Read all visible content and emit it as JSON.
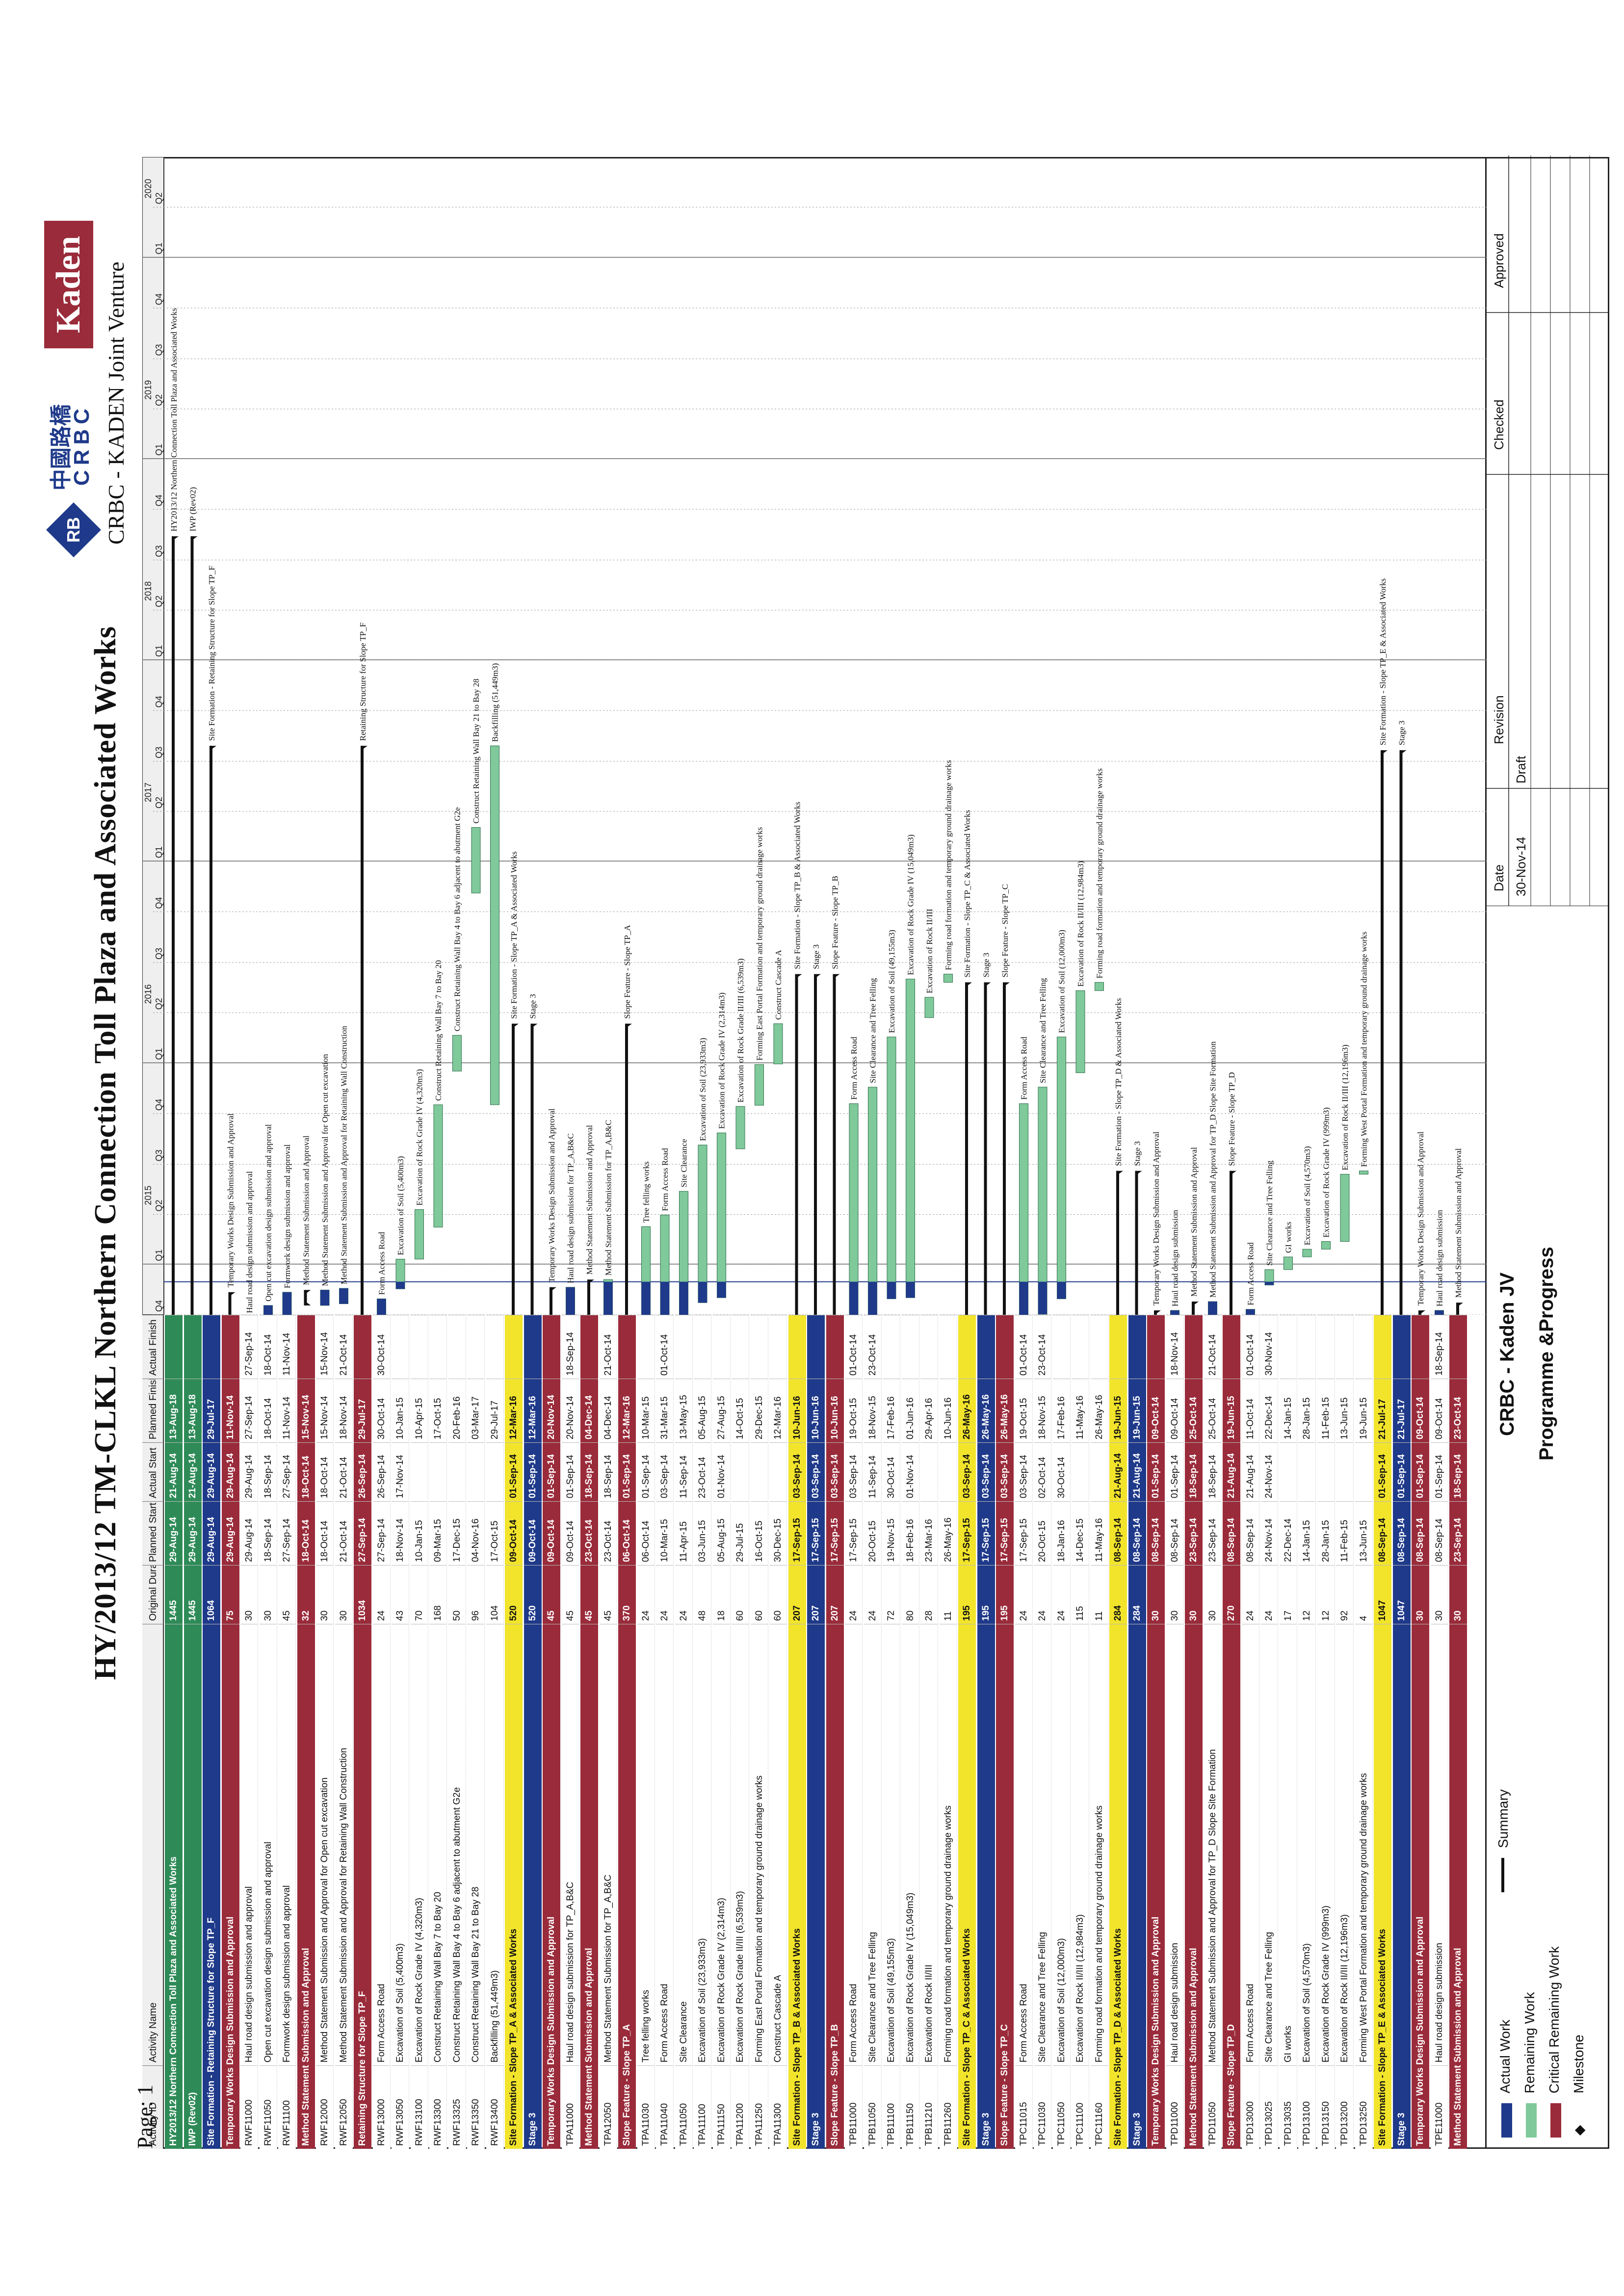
{
  "title": "HY/2013/12 TM-CLKL Northern Connection Toll Plaza and Associated Works",
  "page_label": "Page: 1",
  "columns": [
    "Activity ID",
    "Activity Name",
    "Original Duration",
    "Planned Start",
    "Actual Start",
    "Planned Finish",
    "Actual Finish"
  ],
  "rows": [
    {
      "k": "wbs0",
      "id": "HY2013/12 Northern Connection Toll Plaza and Associated Works",
      "name": "",
      "dur": "1445",
      "ps": "29-Aug-14",
      "as": "21-Aug-14",
      "pf": "13-Aug-18",
      "af": ""
    },
    {
      "k": "wbs0",
      "id": "IWP (Rev02)",
      "name": "",
      "dur": "1445",
      "ps": "29-Aug-14",
      "as": "21-Aug-14",
      "pf": "13-Aug-18",
      "af": ""
    },
    {
      "k": "wbs1",
      "id": "Site Formation - Retaining Structure for Slope TP_F",
      "name": "",
      "dur": "1064",
      "ps": "29-Aug-14",
      "as": "29-Aug-14",
      "pf": "29-Jul-17",
      "af": ""
    },
    {
      "k": "wbs3",
      "id": "Temporary Works Design Submission and Approval",
      "name": "",
      "dur": "75",
      "ps": "29-Aug-14",
      "as": "29-Aug-14",
      "pf": "11-Nov-14",
      "af": ""
    },
    {
      "k": "task",
      "id": "RWF11000",
      "name": "Haul road design submission and approval",
      "dur": "30",
      "ps": "29-Aug-14",
      "as": "29-Aug-14",
      "pf": "27-Sep-14",
      "af": "27-Sep-14"
    },
    {
      "k": "task",
      "id": "RWF11050",
      "name": "Open cut excavation design submission and approval",
      "dur": "30",
      "ps": "18-Sep-14",
      "as": "18-Sep-14",
      "pf": "18-Oct-14",
      "af": "18-Oct-14"
    },
    {
      "k": "task",
      "id": "RWF11100",
      "name": "Formwork design submission and approval",
      "dur": "45",
      "ps": "27-Sep-14",
      "as": "27-Sep-14",
      "pf": "11-Nov-14",
      "af": "11-Nov-14"
    },
    {
      "k": "wbs3",
      "id": "Method Statement Submission and Approval",
      "name": "",
      "dur": "32",
      "ps": "18-Oct-14",
      "as": "18-Oct-14",
      "pf": "15-Nov-14",
      "af": ""
    },
    {
      "k": "task",
      "id": "RWF12000",
      "name": "Method Statement Submission and Approval for Open cut excavation",
      "dur": "30",
      "ps": "18-Oct-14",
      "as": "18-Oct-14",
      "pf": "15-Nov-14",
      "af": "15-Nov-14"
    },
    {
      "k": "task",
      "id": "RWF12050",
      "name": "Method Statement Submission and Approval for Retaining Wall Construction",
      "dur": "30",
      "ps": "21-Oct-14",
      "as": "21-Oct-14",
      "pf": "18-Nov-14",
      "af": "21-Oct-14"
    },
    {
      "k": "wbs3",
      "id": "Retaining Structure for Slope TP_F",
      "name": "",
      "dur": "1034",
      "ps": "27-Sep-14",
      "as": "26-Sep-14",
      "pf": "29-Jul-17",
      "af": ""
    },
    {
      "k": "task",
      "id": "RWF13000",
      "name": "Form Access Road",
      "dur": "24",
      "ps": "27-Sep-14",
      "as": "26-Sep-14",
      "pf": "30-Oct-14",
      "af": "30-Oct-14"
    },
    {
      "k": "task",
      "id": "RWF13050",
      "name": "Excavation of Soil (5,400m3)",
      "dur": "43",
      "ps": "18-Nov-14",
      "as": "17-Nov-14",
      "pf": "10-Jan-15",
      "af": ""
    },
    {
      "k": "task",
      "id": "RWF13100",
      "name": "Excavation of Rock Grade IV (4,320m3)",
      "dur": "70",
      "ps": "10-Jan-15",
      "as": "",
      "pf": "10-Apr-15",
      "af": ""
    },
    {
      "k": "task",
      "id": "RWF13300",
      "name": "Construct Retaining Wall Bay 7 to Bay 20",
      "dur": "168",
      "ps": "09-Mar-15",
      "as": "",
      "pf": "17-Oct-15",
      "af": ""
    },
    {
      "k": "task",
      "id": "RWF13325",
      "name": "Construct Retaining Wall Bay 4 to Bay 6 adjacent to abutment G2e",
      "dur": "50",
      "ps": "17-Dec-15",
      "as": "",
      "pf": "20-Feb-16",
      "af": ""
    },
    {
      "k": "task",
      "id": "RWF13350",
      "name": "Construct Retaining Wall Bay 21 to Bay 28",
      "dur": "96",
      "ps": "04-Nov-16",
      "as": "",
      "pf": "03-Mar-17",
      "af": ""
    },
    {
      "k": "task",
      "id": "RWF13400",
      "name": "Backfilling (51,449m3)",
      "dur": "104",
      "ps": "17-Oct-15",
      "as": "",
      "pf": "29-Jul-17",
      "af": ""
    },
    {
      "k": "wbs2",
      "id": "Site Formation - Slope TP_A & Associated Works",
      "name": "",
      "dur": "520",
      "ps": "09-Oct-14",
      "as": "01-Sep-14",
      "pf": "12-Mar-16",
      "af": ""
    },
    {
      "k": "wbs1",
      "id": "Stage 3",
      "name": "",
      "dur": "520",
      "ps": "09-Oct-14",
      "as": "01-Sep-14",
      "pf": "12-Mar-16",
      "af": ""
    },
    {
      "k": "wbs3",
      "id": "Temporary Works Design Submission and Approval",
      "name": "",
      "dur": "45",
      "ps": "09-Oct-14",
      "as": "01-Sep-14",
      "pf": "20-Nov-14",
      "af": ""
    },
    {
      "k": "task",
      "id": "TPA11000",
      "name": "Haul road design submission for TP_A,B&C",
      "dur": "45",
      "ps": "09-Oct-14",
      "as": "01-Sep-14",
      "pf": "20-Nov-14",
      "af": "18-Sep-14"
    },
    {
      "k": "wbs3",
      "id": "Method Statement Submission and Approval",
      "name": "",
      "dur": "45",
      "ps": "23-Oct-14",
      "as": "18-Sep-14",
      "pf": "04-Dec-14",
      "af": ""
    },
    {
      "k": "task",
      "id": "TPA12050",
      "name": "Method Statement Submission for TP_A,B&C",
      "dur": "45",
      "ps": "23-Oct-14",
      "as": "18-Sep-14",
      "pf": "04-Dec-14",
      "af": "21-Oct-14"
    },
    {
      "k": "wbs3",
      "id": "Slope Feature - Slope TP_A",
      "name": "",
      "dur": "370",
      "ps": "06-Oct-14",
      "as": "01-Sep-14",
      "pf": "12-Mar-16",
      "af": ""
    },
    {
      "k": "task",
      "id": "TPA11030",
      "name": "Tree felling works",
      "dur": "24",
      "ps": "06-Oct-14",
      "as": "01-Sep-14",
      "pf": "10-Mar-15",
      "af": ""
    },
    {
      "k": "task",
      "id": "TPA11040",
      "name": "Form Access Road",
      "dur": "24",
      "ps": "10-Mar-15",
      "as": "03-Sep-14",
      "pf": "31-Mar-15",
      "af": "01-Oct-14"
    },
    {
      "k": "task",
      "id": "TPA11050",
      "name": "Site Clearance",
      "dur": "24",
      "ps": "11-Apr-15",
      "as": "11-Sep-14",
      "pf": "13-May-15",
      "af": ""
    },
    {
      "k": "task",
      "id": "TPA11100",
      "name": "Excavation of Soil (23,933m3)",
      "dur": "48",
      "ps": "03-Jun-15",
      "as": "23-Oct-14",
      "pf": "05-Aug-15",
      "af": ""
    },
    {
      "k": "task",
      "id": "TPA11150",
      "name": "Excavation of Rock Grade IV (2,314m3)",
      "dur": "18",
      "ps": "05-Aug-15",
      "as": "01-Nov-14",
      "pf": "27-Aug-15",
      "af": ""
    },
    {
      "k": "task",
      "id": "TPA11200",
      "name": "Excavation of Rock Grade II/III (6,539m3)",
      "dur": "60",
      "ps": "29-Jul-15",
      "as": "",
      "pf": "14-Oct-15",
      "af": ""
    },
    {
      "k": "task",
      "id": "TPA11250",
      "name": "Forming East Portal Formation and temporary ground drainage works",
      "dur": "60",
      "ps": "16-Oct-15",
      "as": "",
      "pf": "29-Dec-15",
      "af": ""
    },
    {
      "k": "task",
      "id": "TPA11300",
      "name": "Construct Cascade A",
      "dur": "60",
      "ps": "30-Dec-15",
      "as": "",
      "pf": "12-Mar-16",
      "af": ""
    },
    {
      "k": "wbs2",
      "id": "Site Formation - Slope TP_B & Associated Works",
      "name": "",
      "dur": "207",
      "ps": "17-Sep-15",
      "as": "03-Sep-14",
      "pf": "10-Jun-16",
      "af": ""
    },
    {
      "k": "wbs1",
      "id": "Stage 3",
      "name": "",
      "dur": "207",
      "ps": "17-Sep-15",
      "as": "03-Sep-14",
      "pf": "10-Jun-16",
      "af": ""
    },
    {
      "k": "wbs3",
      "id": "Slope Feature - Slope TP_B",
      "name": "",
      "dur": "207",
      "ps": "17-Sep-15",
      "as": "03-Sep-14",
      "pf": "10-Jun-16",
      "af": ""
    },
    {
      "k": "task",
      "id": "TPB11000",
      "name": "Form Access Road",
      "dur": "24",
      "ps": "17-Sep-15",
      "as": "03-Sep-14",
      "pf": "19-Oct-15",
      "af": "01-Oct-14"
    },
    {
      "k": "task",
      "id": "TPB11050",
      "name": "Site Clearance and Tree Felling",
      "dur": "24",
      "ps": "20-Oct-15",
      "as": "11-Sep-14",
      "pf": "18-Nov-15",
      "af": "23-Oct-14"
    },
    {
      "k": "task",
      "id": "TPB11100",
      "name": "Excavation of Soil (49,155m3)",
      "dur": "72",
      "ps": "19-Nov-15",
      "as": "30-Oct-14",
      "pf": "17-Feb-16",
      "af": ""
    },
    {
      "k": "task",
      "id": "TPB11150",
      "name": "Excavation of Rock Grade IV (15,049m3)",
      "dur": "80",
      "ps": "18-Feb-16",
      "as": "01-Nov-14",
      "pf": "01-Jun-16",
      "af": ""
    },
    {
      "k": "task",
      "id": "TPB11210",
      "name": "Excavation of Rock II/III",
      "dur": "28",
      "ps": "23-Mar-16",
      "as": "",
      "pf": "29-Apr-16",
      "af": ""
    },
    {
      "k": "task",
      "id": "TPB11260",
      "name": "Forming road formation and temporary ground drainage works",
      "dur": "11",
      "ps": "26-May-16",
      "as": "",
      "pf": "10-Jun-16",
      "af": ""
    },
    {
      "k": "wbs2",
      "id": "Site Formation - Slope TP_C & Associated Works",
      "name": "",
      "dur": "195",
      "ps": "17-Sep-15",
      "as": "03-Sep-14",
      "pf": "26-May-16",
      "af": ""
    },
    {
      "k": "wbs1",
      "id": "Stage 3",
      "name": "",
      "dur": "195",
      "ps": "17-Sep-15",
      "as": "03-Sep-14",
      "pf": "26-May-16",
      "af": ""
    },
    {
      "k": "wbs3",
      "id": "Slope Feature - Slope TP_C",
      "name": "",
      "dur": "195",
      "ps": "17-Sep-15",
      "as": "03-Sep-14",
      "pf": "26-May-16",
      "af": ""
    },
    {
      "k": "task",
      "id": "TPC11015",
      "name": "Form Access Road",
      "dur": "24",
      "ps": "17-Sep-15",
      "as": "03-Sep-14",
      "pf": "19-Oct-15",
      "af": "01-Oct-14"
    },
    {
      "k": "task",
      "id": "TPC11030",
      "name": "Site Clearance and Tree Felling",
      "dur": "24",
      "ps": "20-Oct-15",
      "as": "02-Oct-14",
      "pf": "18-Nov-15",
      "af": "23-Oct-14"
    },
    {
      "k": "task",
      "id": "TPC11050",
      "name": "Excavation of Soil (12,000m3)",
      "dur": "24",
      "ps": "18-Jan-16",
      "as": "30-Oct-14",
      "pf": "17-Feb-16",
      "af": ""
    },
    {
      "k": "task",
      "id": "TPC11100",
      "name": "Excavation of Rock II/III (12,984m3)",
      "dur": "115",
      "ps": "14-Dec-15",
      "as": "",
      "pf": "11-May-16",
      "af": ""
    },
    {
      "k": "task",
      "id": "TPC11160",
      "name": "Forming road formation and temporary ground drainage works",
      "dur": "11",
      "ps": "11-May-16",
      "as": "",
      "pf": "26-May-16",
      "af": ""
    },
    {
      "k": "wbs2",
      "id": "Site Formation - Slope TP_D & Associated Works",
      "name": "",
      "dur": "284",
      "ps": "08-Sep-14",
      "as": "21-Aug-14",
      "pf": "19-Jun-15",
      "af": ""
    },
    {
      "k": "wbs1",
      "id": "Stage 3",
      "name": "",
      "dur": "284",
      "ps": "08-Sep-14",
      "as": "21-Aug-14",
      "pf": "19-Jun-15",
      "af": ""
    },
    {
      "k": "wbs3",
      "id": "Temporary Works Design Submission and Approval",
      "name": "",
      "dur": "30",
      "ps": "08-Sep-14",
      "as": "01-Sep-14",
      "pf": "09-Oct-14",
      "af": ""
    },
    {
      "k": "task",
      "id": "TPD11000",
      "name": "Haul road design submission",
      "dur": "30",
      "ps": "08-Sep-14",
      "as": "01-Sep-14",
      "pf": "09-Oct-14",
      "af": "18-Nov-14"
    },
    {
      "k": "wbs3",
      "id": "Method Statement Submission and Approval",
      "name": "",
      "dur": "30",
      "ps": "23-Sep-14",
      "as": "18-Sep-14",
      "pf": "25-Oct-14",
      "af": ""
    },
    {
      "k": "task",
      "id": "TPD11050",
      "name": "Method Statement Submission and Approval for TP_D Slope Site Formation",
      "dur": "30",
      "ps": "23-Sep-14",
      "as": "18-Sep-14",
      "pf": "25-Oct-14",
      "af": "21-Oct-14"
    },
    {
      "k": "wbs3",
      "id": "Slope Feature - Slope TP_D",
      "name": "",
      "dur": "270",
      "ps": "08-Sep-14",
      "as": "21-Aug-14",
      "pf": "19-Jun-15",
      "af": ""
    },
    {
      "k": "task",
      "id": "TPD13000",
      "name": "Form Access Road",
      "dur": "24",
      "ps": "08-Sep-14",
      "as": "21-Aug-14",
      "pf": "11-Oct-14",
      "af": "01-Oct-14"
    },
    {
      "k": "task",
      "id": "TPD13025",
      "name": "Site Clearance and Tree Felling",
      "dur": "24",
      "ps": "24-Nov-14",
      "as": "24-Nov-14",
      "pf": "22-Dec-14",
      "af": "30-Nov-14"
    },
    {
      "k": "task",
      "id": "TPD13035",
      "name": "GI works",
      "dur": "17",
      "ps": "22-Dec-14",
      "as": "",
      "pf": "14-Jan-15",
      "af": ""
    },
    {
      "k": "task",
      "id": "TPD13100",
      "name": "Excavation of Soil (4,570m3)",
      "dur": "12",
      "ps": "14-Jan-15",
      "as": "",
      "pf": "28-Jan-15",
      "af": ""
    },
    {
      "k": "task",
      "id": "TPD13150",
      "name": "Excavation of Rock Grade IV (999m3)",
      "dur": "12",
      "ps": "28-Jan-15",
      "as": "",
      "pf": "11-Feb-15",
      "af": ""
    },
    {
      "k": "task",
      "id": "TPD13200",
      "name": "Excavation of Rock II/III (12,196m3)",
      "dur": "92",
      "ps": "11-Feb-15",
      "as": "",
      "pf": "13-Jun-15",
      "af": ""
    },
    {
      "k": "task",
      "id": "TPD13250",
      "name": "Forming West Portal Formation and temporary ground drainage works",
      "dur": "4",
      "ps": "13-Jun-15",
      "as": "",
      "pf": "19-Jun-15",
      "af": ""
    },
    {
      "k": "wbs2",
      "id": "Site Formation - Slope TP_E & Associated Works",
      "name": "",
      "dur": "1047",
      "ps": "08-Sep-14",
      "as": "01-Sep-14",
      "pf": "21-Jul-17",
      "af": ""
    },
    {
      "k": "wbs1",
      "id": "Stage 3",
      "name": "",
      "dur": "1047",
      "ps": "08-Sep-14",
      "as": "01-Sep-14",
      "pf": "21-Jul-17",
      "af": ""
    },
    {
      "k": "wbs3",
      "id": "Temporary Works Design Submission and Approval",
      "name": "",
      "dur": "30",
      "ps": "08-Sep-14",
      "as": "01-Sep-14",
      "pf": "09-Oct-14",
      "af": ""
    },
    {
      "k": "task",
      "id": "TPE11000",
      "name": "Haul road design submission",
      "dur": "30",
      "ps": "08-Sep-14",
      "as": "01-Sep-14",
      "pf": "09-Oct-14",
      "af": "18-Sep-14"
    },
    {
      "k": "wbs3",
      "id": "Method Statement Submission and Approval",
      "name": "",
      "dur": "30",
      "ps": "23-Sep-14",
      "as": "18-Sep-14",
      "pf": "23-Oct-14",
      "af": ""
    }
  ],
  "timescale": {
    "years": [
      "2015",
      "2016",
      "2017",
      "2018",
      "2019",
      "2020"
    ],
    "quarters": [
      "Q4",
      "Q1",
      "Q2",
      "Q3",
      "Q4",
      "Q1",
      "Q2",
      "Q3",
      "Q4",
      "Q1",
      "Q2",
      "Q3",
      "Q4",
      "Q1",
      "Q2",
      "Q3",
      "Q4",
      "Q1",
      "Q2",
      "Q3",
      "Q4",
      "Q1",
      "Q2"
    ]
  },
  "gantt_labels": [
    "Form Access Road",
    "Excavation of Soil (5,400m3)",
    "Excavation of Rock Grade IV (4,320m3)",
    "Construct Retaining Wall Bay 7 to Bay 20",
    "Construct Retaining Wall Bay 4 to Bay 6 adjacent to abutment G2e",
    "Construct Retaining Wall Bay 21 to Bay 28",
    "Backfilling (51,449m3)",
    "Site Formation - Slope TP_A & Associated Works",
    "Tree felling works",
    "Site Clearance",
    "Excavation of Soil (23,933m3)",
    "Excavation of Rock Grade IV (2,314m3)",
    "Excavation of Rock Grade II/III (6,539m3)",
    "Forming East Portal Formation and temporary ground drainage works",
    "Construct Cascade A",
    "Site Clearance and Tree Felling",
    "Excavation of Soil (49,155m3)",
    "Excavation of Rock Grade IV (15,049m3)",
    "Excavation of Rock II/III",
    "Forming road formation and temporary ground drainage works",
    "Excavation of Soil (12,000m3)",
    "Excavation of Rock II/III (12,984m3)",
    "GI works",
    "Excavation of Soil (4,570m3)",
    "Excavation of Rock Grade IV (999m3)",
    "Excavation of Rock II/III (12,196m3)",
    "Forming West Portal Formation and temporary ground drainage works",
    "Site Formation - Slope TP_E & Associated Works"
  ],
  "legend": {
    "actual": "Actual Work",
    "remaining": "Remaining Work",
    "critical": "Critical Remaining Work",
    "milestone": "Milestone",
    "summary": "Summary"
  },
  "footer": {
    "company": "CRBC - Kaden JV",
    "doc": "Programme &Progress",
    "logo_cn": "中國路橋",
    "logo_crbc": "CRBC",
    "logo_kaden": "Kaden",
    "jv": "CRBC - KADEN Joint Venture",
    "rev_headers": [
      "Date",
      "Revision",
      "Checked",
      "Approved"
    ],
    "rev_date": "30-Nov-14",
    "rev_desc": "Draft"
  },
  "colors": {
    "actual": "#1f3a8a",
    "remaining": "#7fc99a",
    "critical": "#9a2b3a",
    "summary": "#111111",
    "milestone": "#111111"
  }
}
